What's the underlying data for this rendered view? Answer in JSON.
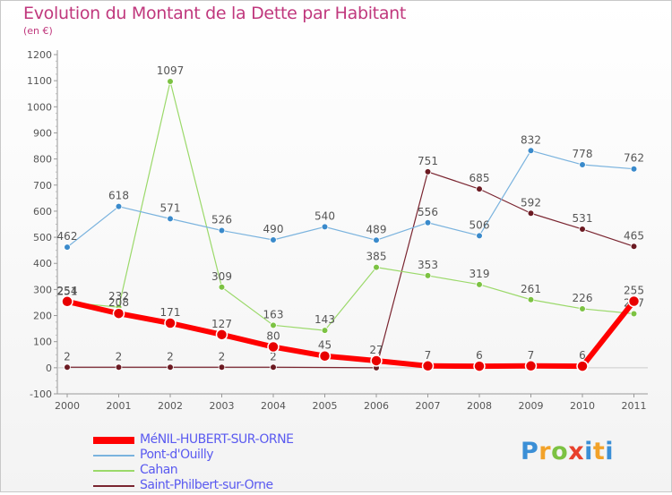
{
  "title": "Evolution du Montant de la Dette par Habitant",
  "subtitle": "(en €)",
  "logo_text": "Proxiti",
  "chart_data": {
    "type": "line",
    "title": "Evolution du Montant de la Dette par Habitant",
    "subtitle": "(en €)",
    "xlabel": "",
    "ylabel": "",
    "categories": [
      "2000",
      "2001",
      "2002",
      "2003",
      "2004",
      "2005",
      "2006",
      "2007",
      "2008",
      "2009",
      "2010",
      "2011"
    ],
    "ylim": [
      -100,
      1200
    ],
    "yticks": [
      -100,
      0,
      100,
      200,
      300,
      400,
      500,
      600,
      700,
      800,
      900,
      1000,
      1100,
      1200
    ],
    "grid": false,
    "legend_position": "bottom-left",
    "series": [
      {
        "name": "Saint-Philbert-sur-Orne",
        "color": "#7a2530",
        "marker": "#6b1a22",
        "values": [
          2,
          2,
          2,
          2,
          2,
          null,
          null,
          751,
          685,
          592,
          531,
          465
        ],
        "labels": [
          "2",
          "2",
          "2",
          "2",
          "2",
          "",
          "",
          "751",
          "685",
          "592",
          "531",
          "465"
        ]
      },
      {
        "name": "Cahan",
        "color": "#9bd96a",
        "marker": "#7cc242",
        "values": [
          251,
          232,
          1097,
          309,
          163,
          143,
          385,
          353,
          319,
          261,
          226,
          207
        ],
        "labels": [
          "251",
          "232",
          "1097",
          "309",
          "163",
          "143",
          "385",
          "353",
          "319",
          "261",
          "226",
          "207"
        ]
      },
      {
        "name": "Pont-d'Ouilly",
        "color": "#7ab3de",
        "marker": "#3a8acb",
        "values": [
          462,
          618,
          571,
          526,
          490,
          540,
          489,
          556,
          506,
          832,
          778,
          762
        ],
        "labels": [
          "462",
          "618",
          "571",
          "526",
          "490",
          "540",
          "489",
          "556",
          "506",
          "832",
          "778",
          "762"
        ]
      },
      {
        "name": "MéNIL-HUBERT-SUR-ORNE",
        "color": "#ff0000",
        "marker": "#e80000",
        "values": [
          254,
          208,
          171,
          127,
          80,
          45,
          27,
          7,
          6,
          7,
          6,
          255
        ],
        "labels": [
          "254",
          "208",
          "171",
          "127",
          "80",
          "45",
          "27",
          "7",
          "6",
          "7",
          "6",
          "255"
        ]
      }
    ],
    "legend_order": [
      "MéNIL-HUBERT-SUR-ORNE",
      "Pont-d'Ouilly",
      "Cahan",
      "Saint-Philbert-sur-Orne"
    ],
    "legend_colors": [
      "#ff0000",
      "#7ab3de",
      "#9bd96a",
      "#7a2530"
    ],
    "legend_text_color": "#5a5af0"
  }
}
